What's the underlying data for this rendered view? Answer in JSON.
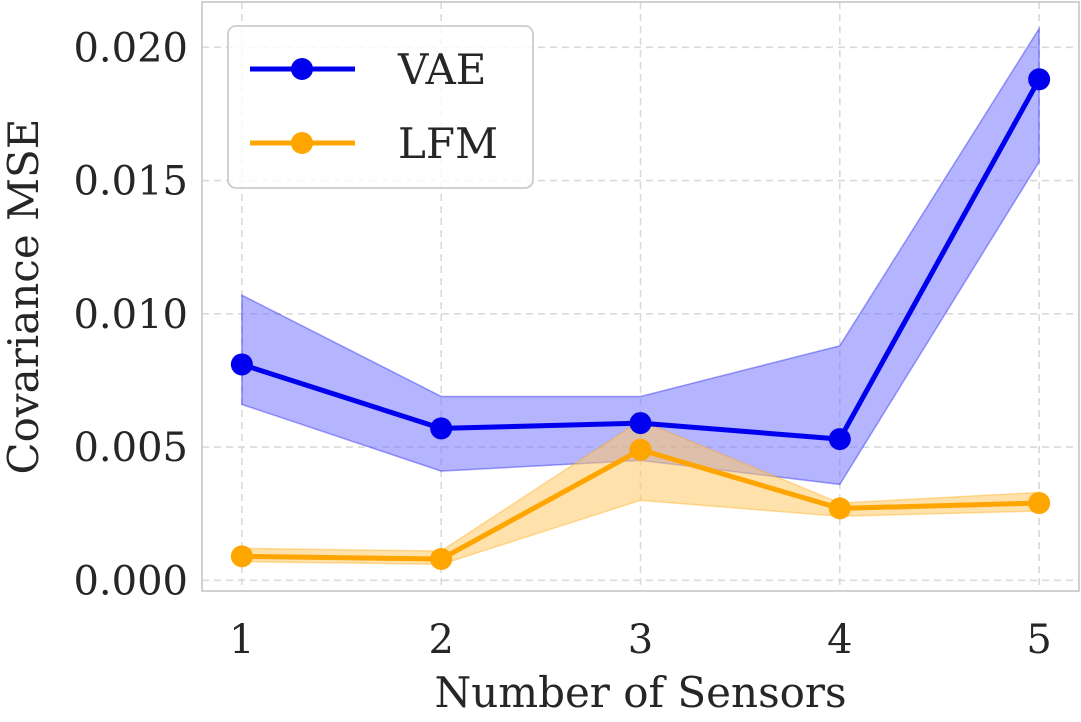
{
  "chart_data": {
    "type": "line",
    "title": "",
    "xlabel": "Number of Sensors",
    "ylabel": "Covariance MSE",
    "x": [
      1,
      2,
      3,
      4,
      5
    ],
    "xlim": [
      0.8,
      5.2
    ],
    "ylim": [
      -0.0004,
      0.0217
    ],
    "xticks": [
      1,
      2,
      3,
      4,
      5
    ],
    "xtick_labels": [
      "1",
      "2",
      "3",
      "4",
      "5"
    ],
    "yticks": [
      0.0,
      0.005,
      0.01,
      0.015,
      0.02
    ],
    "ytick_labels": [
      "0.000",
      "0.005",
      "0.010",
      "0.015",
      "0.020"
    ],
    "grid": true,
    "legend_position": "top-left",
    "series": [
      {
        "name": "VAE",
        "color": "#0000ee",
        "band_color": "#7777ff",
        "values": [
          0.0081,
          0.0057,
          0.0059,
          0.0053,
          0.0188
        ],
        "lower": [
          0.0066,
          0.0041,
          0.0045,
          0.0036,
          0.0157
        ],
        "upper": [
          0.0107,
          0.0069,
          0.0069,
          0.0088,
          0.0207
        ]
      },
      {
        "name": "LFM",
        "color": "#ffa500",
        "band_color": "#ffc966",
        "values": [
          0.0009,
          0.0008,
          0.0049,
          0.0027,
          0.0029
        ],
        "lower": [
          0.0007,
          0.0006,
          0.003,
          0.0024,
          0.0026
        ],
        "upper": [
          0.0012,
          0.0011,
          0.006,
          0.0029,
          0.0033
        ]
      }
    ]
  }
}
